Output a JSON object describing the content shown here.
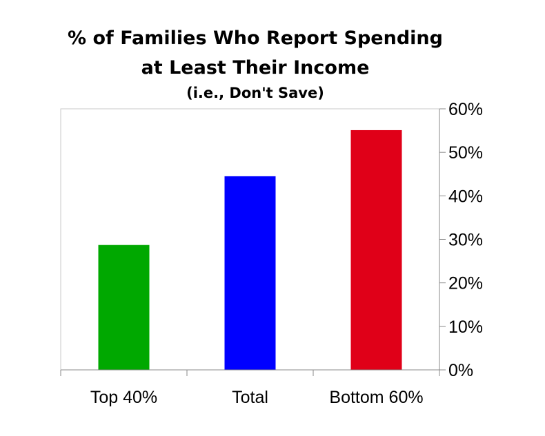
{
  "chart_data": {
    "type": "bar",
    "title": "% of Families Who Report Spending",
    "title_line2": "at Least Their Income",
    "subtitle": "(i.e., Don't Save)",
    "categories": [
      "Top 40%",
      "Total",
      "Bottom 60%"
    ],
    "values": [
      28.7,
      44.5,
      55.1
    ],
    "colors": [
      "#00A800",
      "#0000FF",
      "#E00018"
    ],
    "ylim": [
      0,
      60
    ],
    "yticks": [
      0,
      10,
      20,
      30,
      40,
      50,
      60
    ],
    "ytick_labels": [
      "0%",
      "10%",
      "20%",
      "30%",
      "40%",
      "50%",
      "60%"
    ],
    "y_axis_side": "right",
    "grid": false,
    "legend": "none",
    "xlabel": "",
    "ylabel": ""
  }
}
